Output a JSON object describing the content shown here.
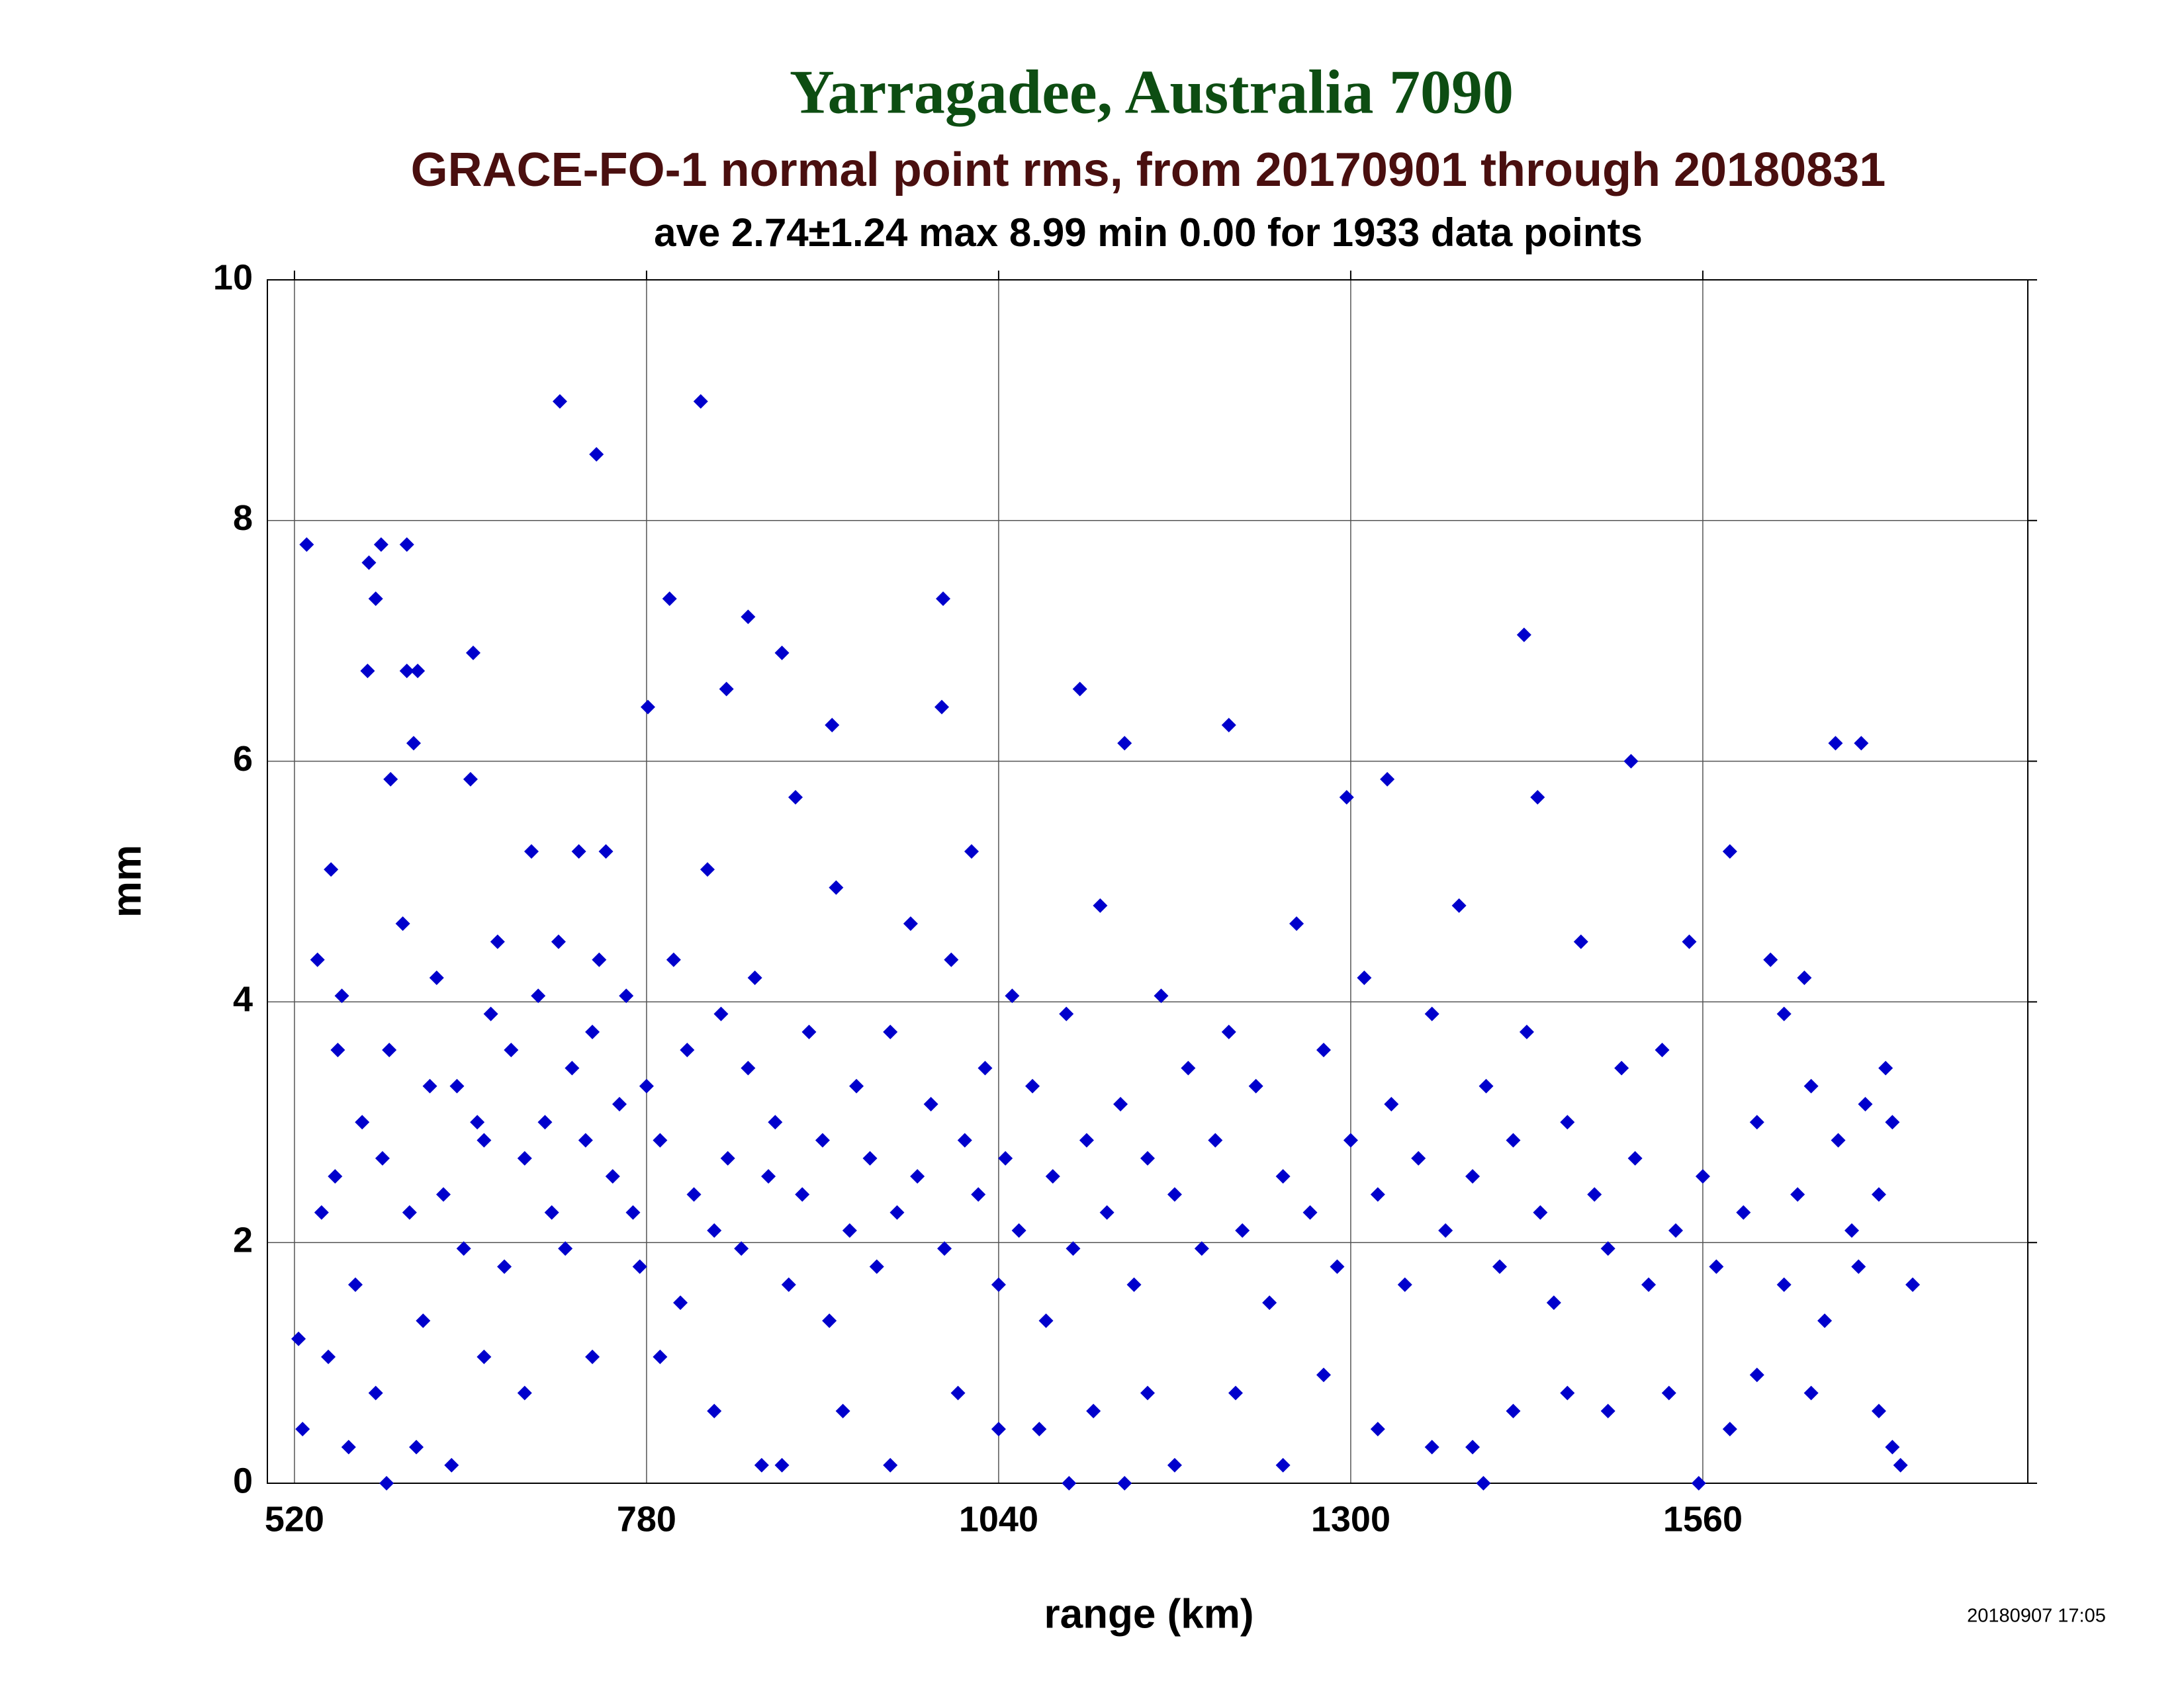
{
  "chart_data": {
    "type": "scatter",
    "title": "Yarragadee, Australia 7090",
    "subtitle": "GRACE-FO-1 normal point rms, from 20170901 through 20180831",
    "annotation": "ave 2.74±1.24 max 8.99 min 0.00 for 1933 data points",
    "x_label": "range (km)",
    "y_label": "mm",
    "footer": "20180907 17:05",
    "xlim": [
      500,
      1800
    ],
    "xticks": [
      520,
      780,
      1040,
      1300,
      1560
    ],
    "ylim": [
      0,
      10
    ],
    "yticks": [
      0,
      2,
      4,
      6,
      8,
      10
    ],
    "grid": true,
    "series": [
      {
        "color": "#0000cc",
        "x": [
          523,
          526,
          529,
          537,
          547,
          552,
          555,
          575,
          584,
          580,
          574,
          603,
          603,
          611,
          608,
          591,
          652,
          716,
          743,
          820,
          797,
          855,
          781,
          839,
          880,
          917,
          999,
          998,
          1100,
          1133,
          1210,
          1428,
          1507,
          1658,
          1677,
          1715,
          1706,
          1297,
          1327,
          1438,
          588,
          1133,
          1557,
          1398,
          1092,
          636,
          880,
          865,
          1170,
          1250,
          545,
          560,
          580,
          610,
          660,
          690,
          740,
          790,
          830,
          925,
          960,
          1010,
          1040,
          1070,
          1110,
          1150,
          1215,
          1280,
          1320,
          1360,
          1390,
          1420,
          1460,
          1490,
          1535,
          1580,
          1600,
          1640,
          1690,
          1700,
          540,
          550,
          565,
          570,
          585,
          590,
          600,
          605,
          615,
          620,
          625,
          630,
          640,
          645,
          650,
          655,
          660,
          665,
          670,
          675,
          680,
          690,
          695,
          700,
          705,
          710,
          715,
          720,
          725,
          730,
          735,
          740,
          745,
          750,
          755,
          760,
          765,
          770,
          775,
          780,
          790,
          800,
          805,
          810,
          815,
          825,
          830,
          835,
          840,
          850,
          855,
          860,
          870,
          875,
          885,
          890,
          895,
          900,
          910,
          915,
          920,
          930,
          935,
          945,
          950,
          960,
          965,
          975,
          980,
          990,
          1000,
          1005,
          1015,
          1020,
          1025,
          1030,
          1040,
          1045,
          1050,
          1055,
          1065,
          1075,
          1080,
          1090,
          1095,
          1105,
          1115,
          1120,
          1130,
          1140,
          1150,
          1160,
          1170,
          1180,
          1190,
          1200,
          1210,
          1220,
          1230,
          1240,
          1250,
          1260,
          1270,
          1280,
          1290,
          1300,
          1310,
          1320,
          1330,
          1340,
          1350,
          1360,
          1370,
          1380,
          1390,
          1400,
          1410,
          1420,
          1430,
          1440,
          1450,
          1460,
          1470,
          1480,
          1490,
          1500,
          1510,
          1520,
          1530,
          1540,
          1550,
          1560,
          1570,
          1580,
          1590,
          1600,
          1610,
          1620,
          1630,
          1640,
          1650,
          1660,
          1670,
          1680,
          1690,
          1695,
          1700,
          1620,
          1635,
          1675
        ],
        "values": [
          1.2,
          0.45,
          7.8,
          4.35,
          5.1,
          3.6,
          4.05,
          7.65,
          7.8,
          7.35,
          6.75,
          7.8,
          6.75,
          6.75,
          6.15,
          5.85,
          6.9,
          8.99,
          8.55,
          8.99,
          7.35,
          7.2,
          6.45,
          6.6,
          6.9,
          6.3,
          7.35,
          6.45,
          6.6,
          6.15,
          6.3,
          7.05,
          6.0,
          6.15,
          6.15,
          1.65,
          0.15,
          5.7,
          5.85,
          5.7,
          0.0,
          0.0,
          0.0,
          0.0,
          0.0,
          0.15,
          0.15,
          0.15,
          0.15,
          0.15,
          1.05,
          0.3,
          0.75,
          0.3,
          1.05,
          0.75,
          1.05,
          1.05,
          0.6,
          0.6,
          0.15,
          0.75,
          0.45,
          0.45,
          0.6,
          0.75,
          0.75,
          0.9,
          0.45,
          0.3,
          0.3,
          0.6,
          0.75,
          0.6,
          0.75,
          0.45,
          0.9,
          0.75,
          0.6,
          0.3,
          2.25,
          2.55,
          1.65,
          3.0,
          2.7,
          3.6,
          4.65,
          2.25,
          1.35,
          3.3,
          4.2,
          2.4,
          3.3,
          1.95,
          5.85,
          3.0,
          2.85,
          3.9,
          4.5,
          1.8,
          3.6,
          2.7,
          5.25,
          4.05,
          3.0,
          2.25,
          4.5,
          1.95,
          3.45,
          5.25,
          2.85,
          3.75,
          4.35,
          5.25,
          2.55,
          3.15,
          4.05,
          2.25,
          1.8,
          3.3,
          2.85,
          4.35,
          1.5,
          3.6,
          2.4,
          5.1,
          2.1,
          3.9,
          2.7,
          1.95,
          3.45,
          4.2,
          2.55,
          3.0,
          1.65,
          5.7,
          2.4,
          3.75,
          2.85,
          1.35,
          4.95,
          2.1,
          3.3,
          2.7,
          1.8,
          3.75,
          2.25,
          4.65,
          2.55,
          3.15,
          1.95,
          4.35,
          2.85,
          5.25,
          2.4,
          3.45,
          1.65,
          2.7,
          4.05,
          2.1,
          3.3,
          1.35,
          2.55,
          3.9,
          1.95,
          2.85,
          4.8,
          2.25,
          3.15,
          1.65,
          2.7,
          4.05,
          2.4,
          3.45,
          1.95,
          2.85,
          3.75,
          2.1,
          3.3,
          1.5,
          2.55,
          4.65,
          2.25,
          3.6,
          1.8,
          2.85,
          4.2,
          2.4,
          3.15,
          1.65,
          2.7,
          3.9,
          2.1,
          4.8,
          2.55,
          3.3,
          1.8,
          2.85,
          3.75,
          2.25,
          1.5,
          3.0,
          4.5,
          2.4,
          1.95,
          3.45,
          2.7,
          1.65,
          3.6,
          2.1,
          4.5,
          2.55,
          1.8,
          5.25,
          2.25,
          3.0,
          4.35,
          1.65,
          2.4,
          3.3,
          1.35,
          2.85,
          2.1,
          3.15,
          2.4,
          3.45,
          3.0,
          3.9,
          4.2,
          1.8
        ]
      }
    ]
  }
}
